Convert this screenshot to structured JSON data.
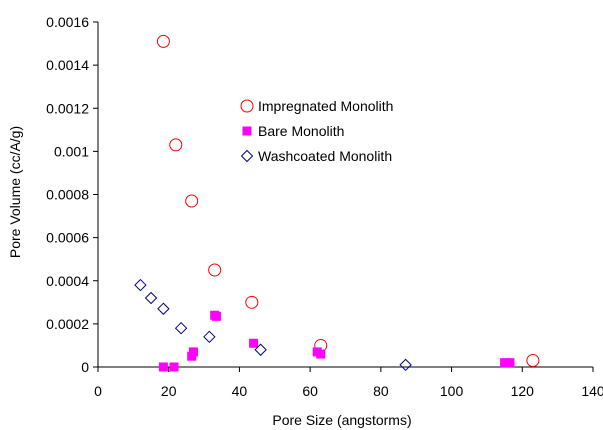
{
  "chart_data": {
    "type": "scatter",
    "title": "",
    "xlabel": "Pore Size (angstorms)",
    "ylabel": "Pore Volume (cc/A/g)",
    "xlim": [
      0,
      140
    ],
    "ylim": [
      0,
      0.0016
    ],
    "xticks": [
      0,
      20,
      40,
      60,
      80,
      100,
      120,
      140
    ],
    "yticks": [
      0,
      0.0002,
      0.0004,
      0.0006,
      0.0008,
      0.001,
      0.0012,
      0.0014,
      0.0016
    ],
    "xtick_labels": [
      "0",
      "20",
      "40",
      "60",
      "80",
      "100",
      "120",
      "140"
    ],
    "ytick_labels": [
      "0",
      "0.0002",
      "0.0004",
      "0.0006",
      "0.0008",
      "0.001",
      "0.0012",
      "0.0014",
      "0.0016"
    ],
    "grid": false,
    "legend": "upper-center",
    "series": [
      {
        "name": "Impregnated Monolith",
        "marker": "circle",
        "color": "#ff0000",
        "x": [
          18.5,
          22,
          26.5,
          33,
          43.5,
          63,
          123
        ],
        "y": [
          0.00151,
          0.00103,
          0.00077,
          0.00045,
          0.0003,
          0.0001,
          3e-05
        ]
      },
      {
        "name": "Bare Monolith",
        "marker": "square",
        "color": "#ff00ff",
        "x": [
          18.5,
          21.5,
          26.5,
          27,
          33,
          33.5,
          44,
          62,
          63,
          115,
          116.5
        ],
        "y": [
          0.0,
          0.0,
          5e-05,
          7e-05,
          0.00024,
          0.000235,
          0.00011,
          7e-05,
          6e-05,
          2e-05,
          2e-05
        ]
      },
      {
        "name": "Washcoated Monolith",
        "marker": "diamond",
        "color": "#000080",
        "x": [
          12,
          15,
          18.5,
          23.5,
          31.5,
          46,
          87
        ],
        "y": [
          0.00038,
          0.00032,
          0.00027,
          0.00018,
          0.00014,
          8e-05,
          1e-05
        ]
      }
    ]
  }
}
